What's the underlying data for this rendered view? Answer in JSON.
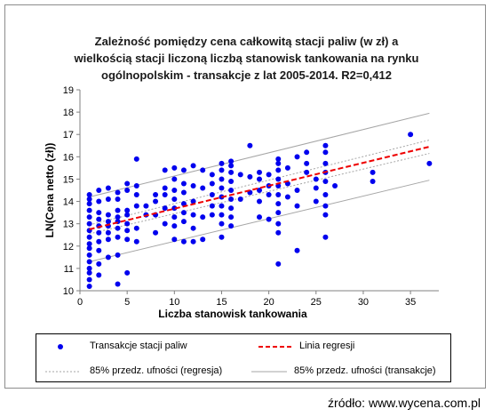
{
  "chart_data": {
    "type": "scatter",
    "title_lines": [
      "Zależność pomiędzy cena całkowitą stacji paliw (w zł) a",
      "wielkością stacji liczoną liczbą stanowisk tankowania na rynku",
      "ogólnopolskim  - transakcje z lat 2005-2014.  R2=0,412"
    ],
    "xlabel": "Liczba stanowisk tankowania",
    "ylabel": "LN(Cena netto (zł))",
    "xlim": [
      0,
      38
    ],
    "ylim": [
      10,
      19
    ],
    "xticks": [
      0,
      5,
      10,
      15,
      20,
      25,
      30,
      35
    ],
    "yticks": [
      10,
      11,
      12,
      13,
      14,
      15,
      16,
      17,
      18,
      19
    ],
    "grid": false,
    "legend_position": "bottom",
    "colors": {
      "points": "#0000ee",
      "regression": "#ee0000",
      "ci_regression": "#a6a6a6",
      "ci_transactions": "#a6a6a6"
    },
    "series": [
      {
        "name": "Transakcje stacji paliw",
        "kind": "scatter",
        "points": [
          [
            1,
            10.2
          ],
          [
            1,
            10.5
          ],
          [
            1,
            10.8
          ],
          [
            1,
            11.0
          ],
          [
            1,
            11.3
          ],
          [
            1,
            11.6
          ],
          [
            1,
            11.9
          ],
          [
            1,
            12.1
          ],
          [
            1,
            12.4
          ],
          [
            1,
            12.7
          ],
          [
            1,
            13.0
          ],
          [
            1,
            13.3
          ],
          [
            1,
            13.6
          ],
          [
            1,
            13.9
          ],
          [
            1,
            14.1
          ],
          [
            1,
            14.3
          ],
          [
            2,
            10.7
          ],
          [
            2,
            11.2
          ],
          [
            2,
            11.8
          ],
          [
            2,
            12.2
          ],
          [
            2,
            12.6
          ],
          [
            2,
            12.9
          ],
          [
            2,
            13.2
          ],
          [
            2,
            13.5
          ],
          [
            2,
            14.0
          ],
          [
            2,
            14.5
          ],
          [
            3,
            11.5
          ],
          [
            3,
            12.3
          ],
          [
            3,
            12.6
          ],
          [
            3,
            12.9
          ],
          [
            3,
            13.1
          ],
          [
            3,
            13.4
          ],
          [
            3,
            14.1
          ],
          [
            3,
            14.6
          ],
          [
            4,
            10.3
          ],
          [
            4,
            11.6
          ],
          [
            4,
            12.4
          ],
          [
            4,
            12.8
          ],
          [
            4,
            13.1
          ],
          [
            4,
            13.3
          ],
          [
            4,
            13.6
          ],
          [
            4,
            14.1
          ],
          [
            4,
            14.4
          ],
          [
            5,
            10.8
          ],
          [
            5,
            12.3
          ],
          [
            5,
            12.7
          ],
          [
            5,
            13.0
          ],
          [
            5,
            13.4
          ],
          [
            5,
            13.6
          ],
          [
            5,
            14.5
          ],
          [
            5,
            14.8
          ],
          [
            6,
            12.2
          ],
          [
            6,
            12.8
          ],
          [
            6,
            13.8
          ],
          [
            6,
            14.3
          ],
          [
            6,
            14.7
          ],
          [
            6,
            15.9
          ],
          [
            7,
            13.4
          ],
          [
            7,
            13.8
          ],
          [
            8,
            12.6
          ],
          [
            8,
            13.4
          ],
          [
            8,
            14.0
          ],
          [
            8,
            14.3
          ],
          [
            9,
            13.0
          ],
          [
            9,
            13.7
          ],
          [
            9,
            14.3
          ],
          [
            9,
            14.6
          ],
          [
            9,
            15.4
          ],
          [
            10,
            12.3
          ],
          [
            10,
            12.9
          ],
          [
            10,
            13.3
          ],
          [
            10,
            13.7
          ],
          [
            10,
            14.1
          ],
          [
            10,
            14.5
          ],
          [
            10,
            15.0
          ],
          [
            10,
            15.5
          ],
          [
            11,
            12.2
          ],
          [
            11,
            13.1
          ],
          [
            11,
            13.5
          ],
          [
            11,
            13.9
          ],
          [
            11,
            14.4
          ],
          [
            11,
            14.8
          ],
          [
            11,
            15.4
          ],
          [
            12,
            12.2
          ],
          [
            12,
            12.8
          ],
          [
            12,
            13.4
          ],
          [
            12,
            14.0
          ],
          [
            12,
            14.7
          ],
          [
            12,
            15.6
          ],
          [
            13,
            12.3
          ],
          [
            13,
            13.3
          ],
          [
            13,
            14.6
          ],
          [
            13,
            15.4
          ],
          [
            14,
            13.4
          ],
          [
            14,
            13.8
          ],
          [
            14,
            14.3
          ],
          [
            14,
            14.8
          ],
          [
            14,
            15.2
          ],
          [
            15,
            12.4
          ],
          [
            15,
            13.0
          ],
          [
            15,
            13.4
          ],
          [
            15,
            13.8
          ],
          [
            15,
            14.2
          ],
          [
            15,
            14.6
          ],
          [
            15,
            15.0
          ],
          [
            15,
            15.4
          ],
          [
            15,
            15.7
          ],
          [
            16,
            12.9
          ],
          [
            16,
            13.3
          ],
          [
            16,
            13.7
          ],
          [
            16,
            14.1
          ],
          [
            16,
            14.5
          ],
          [
            16,
            14.9
          ],
          [
            16,
            15.3
          ],
          [
            16,
            15.6
          ],
          [
            16,
            15.8
          ],
          [
            17,
            14.1
          ],
          [
            17,
            15.2
          ],
          [
            18,
            14.4
          ],
          [
            18,
            15.1
          ],
          [
            18,
            16.5
          ],
          [
            19,
            13.3
          ],
          [
            19,
            14.0
          ],
          [
            19,
            14.5
          ],
          [
            19,
            15.0
          ],
          [
            19,
            15.3
          ],
          [
            20,
            13.2
          ],
          [
            20,
            14.3
          ],
          [
            20,
            14.7
          ],
          [
            20,
            15.2
          ],
          [
            21,
            11.2
          ],
          [
            21,
            12.6
          ],
          [
            21,
            13.0
          ],
          [
            21,
            13.5
          ],
          [
            21,
            13.9
          ],
          [
            21,
            14.3
          ],
          [
            21,
            14.7
          ],
          [
            21,
            15.0
          ],
          [
            21,
            15.4
          ],
          [
            21,
            15.7
          ],
          [
            21,
            15.9
          ],
          [
            22,
            14.2
          ],
          [
            22,
            14.8
          ],
          [
            22,
            15.5
          ],
          [
            23,
            11.8
          ],
          [
            23,
            13.8
          ],
          [
            23,
            14.5
          ],
          [
            23,
            16.0
          ],
          [
            24,
            15.3
          ],
          [
            24,
            15.7
          ],
          [
            24,
            16.2
          ],
          [
            25,
            14.0
          ],
          [
            25,
            14.6
          ],
          [
            25,
            15.0
          ],
          [
            26,
            12.4
          ],
          [
            26,
            13.4
          ],
          [
            26,
            13.8
          ],
          [
            26,
            14.3
          ],
          [
            26,
            14.9
          ],
          [
            26,
            15.3
          ],
          [
            26,
            15.7
          ],
          [
            26,
            16.2
          ],
          [
            26,
            16.5
          ],
          [
            27,
            14.7
          ],
          [
            31,
            14.9
          ],
          [
            31,
            15.3
          ],
          [
            35,
            17.0
          ],
          [
            37,
            15.7
          ]
        ]
      },
      {
        "name": "Linia regresji",
        "kind": "line",
        "style": "dashed",
        "points": [
          [
            1,
            12.75
          ],
          [
            37,
            16.45
          ]
        ]
      },
      {
        "name": "85% przedz. ufności (regresja)",
        "kind": "line",
        "style": "dotted",
        "band": [
          {
            "points": [
              [
                1,
                12.55
              ],
              [
                37,
                16.15
              ]
            ]
          },
          {
            "points": [
              [
                1,
                12.95
              ],
              [
                37,
                16.75
              ]
            ]
          }
        ]
      },
      {
        "name": "85% przedz. ufności (transakcje)",
        "kind": "line",
        "style": "solid",
        "band": [
          {
            "points": [
              [
                1,
                11.3
              ],
              [
                37,
                14.95
              ]
            ]
          },
          {
            "points": [
              [
                1,
                14.2
              ],
              [
                37,
                17.95
              ]
            ]
          }
        ]
      }
    ]
  },
  "source": "źródło: www.wycena.com.pl"
}
